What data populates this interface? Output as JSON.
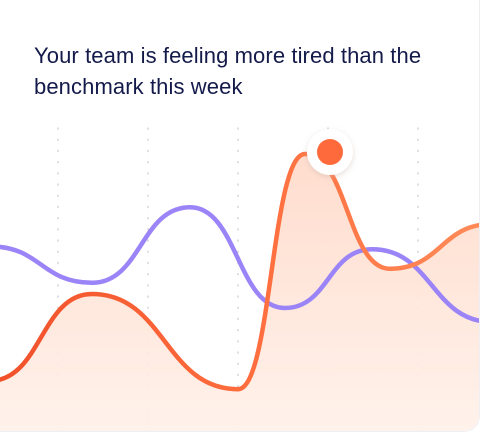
{
  "card": {
    "headline": "Your team is feeling more tired than the benchmark this week"
  },
  "colors": {
    "team_line": "#ff7a45",
    "team_line_dark": "#f25a2a",
    "benchmark_line": "#9a84f7",
    "area_fill": "#ffe7dc",
    "gridline": "#c8c8d0",
    "highlight_dot": "#ff6a3d",
    "headline": "#141a4a"
  },
  "chart_data": {
    "type": "line",
    "grid": "vertical dotted",
    "highlight": {
      "series": 0,
      "index": 4
    },
    "series": [
      {
        "values": [
          0.14,
          0.45,
          0.11,
          0.95,
          0.54,
          0.7
        ]
      },
      {
        "values": [
          0.62,
          0.49,
          0.76,
          0.4,
          0.61,
          0.35
        ]
      }
    ]
  }
}
